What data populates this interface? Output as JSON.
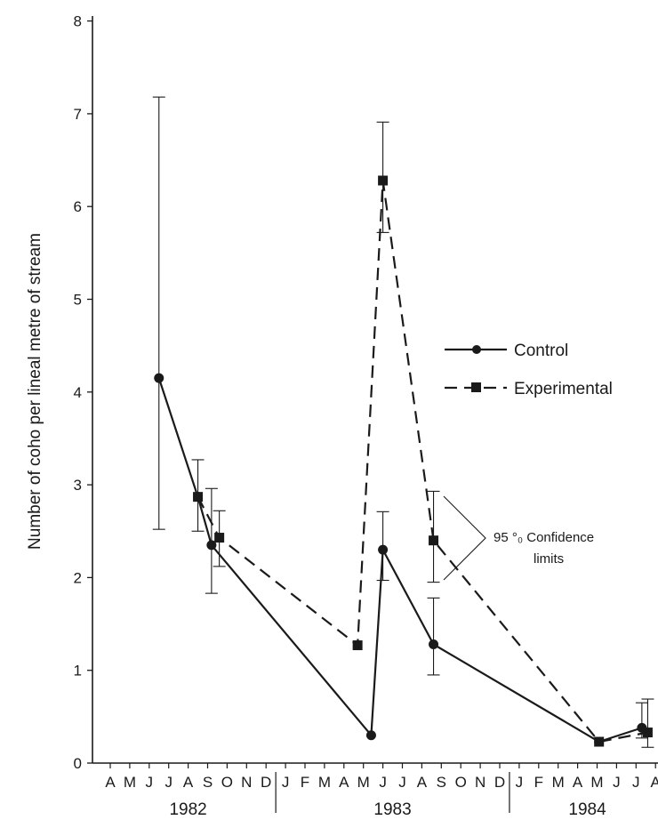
{
  "chart_data": {
    "type": "line",
    "title": "",
    "xlabel": "",
    "ylabel": "Number of coho per lineal metre of stream",
    "ylim": [
      0,
      8
    ],
    "yticks": [
      0,
      1,
      2,
      3,
      4,
      5,
      6,
      7,
      8
    ],
    "month_ticks": [
      "A",
      "M",
      "J",
      "J",
      "A",
      "S",
      "O",
      "N",
      "D",
      "J",
      "F",
      "M",
      "A",
      "M",
      "J",
      "J",
      "A",
      "S",
      "O",
      "N",
      "D",
      "J",
      "F",
      "M",
      "A",
      "M",
      "J",
      "J",
      "A"
    ],
    "years": [
      {
        "label": "1982",
        "start_index": 0,
        "end_index": 9
      },
      {
        "label": "1983",
        "start_index": 9,
        "end_index": 21
      },
      {
        "label": "1984",
        "start_index": 21,
        "end_index": 29
      }
    ],
    "series": [
      {
        "name": "Control",
        "style": "solid",
        "marker": "circle",
        "color": "#1a1a1a",
        "points": [
          {
            "x": 2.5,
            "y": 4.15,
            "lo": 2.52,
            "hi": 7.18
          },
          {
            "x": 4.5,
            "y": 2.87,
            "lo": 2.5,
            "hi": 3.27
          },
          {
            "x": 5.2,
            "y": 2.35,
            "lo": 1.83,
            "hi": 2.96
          },
          {
            "x": 13.4,
            "y": 0.3
          },
          {
            "x": 14.0,
            "y": 2.3,
            "lo": 1.97,
            "hi": 2.71
          },
          {
            "x": 16.6,
            "y": 1.28,
            "lo": 0.95,
            "hi": 1.78
          },
          {
            "x": 25.1,
            "y": 0.23
          },
          {
            "x": 27.3,
            "y": 0.38,
            "lo": 0.27,
            "hi": 0.65
          }
        ]
      },
      {
        "name": "Experimental",
        "style": "dashed",
        "marker": "square",
        "color": "#1a1a1a",
        "points": [
          {
            "x": 4.5,
            "y": 2.87
          },
          {
            "x": 5.6,
            "y": 2.43,
            "lo": 2.12,
            "hi": 2.72
          },
          {
            "x": 12.7,
            "y": 1.27
          },
          {
            "x": 14.0,
            "y": 6.28,
            "lo": 5.72,
            "hi": 6.91
          },
          {
            "x": 16.6,
            "y": 2.4,
            "lo": 1.95,
            "hi": 2.93
          },
          {
            "x": 25.1,
            "y": 0.23
          },
          {
            "x": 27.6,
            "y": 0.33,
            "lo": 0.17,
            "hi": 0.69
          }
        ]
      }
    ],
    "legend": {
      "placement": "right-middle",
      "entries": [
        "Control",
        "Experimental"
      ]
    },
    "annotation": {
      "text_line1": "95 °₀ Confidence",
      "text_line2": "limits",
      "points_to": "Experimental September 1983 confidence limits"
    },
    "grid": false
  }
}
